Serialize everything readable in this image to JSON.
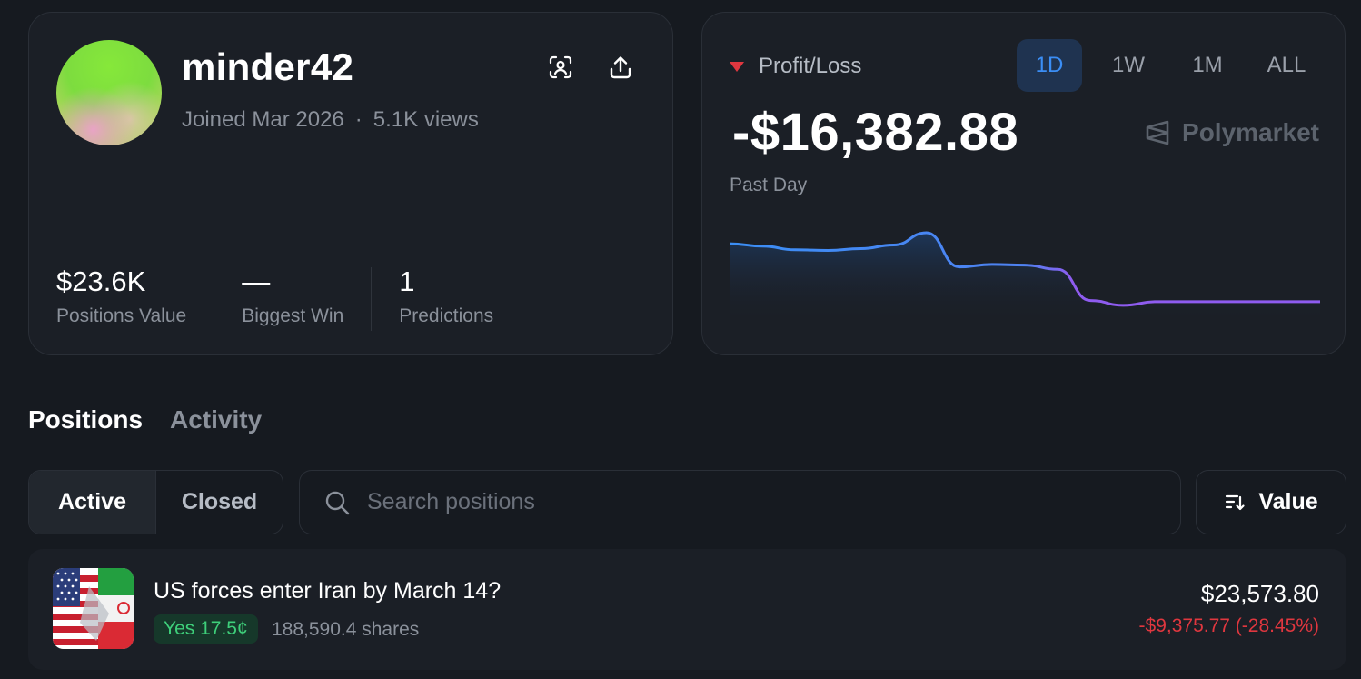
{
  "profile": {
    "username": "minder42",
    "joined": "Joined Mar 2026",
    "separator": "·",
    "views": "5.1K views",
    "icons": {
      "scan": "scan-profile-icon",
      "share": "share-icon"
    },
    "stats": [
      {
        "value": "$23.6K",
        "label": "Positions Value"
      },
      {
        "value": "—",
        "label": "Biggest Win"
      },
      {
        "value": "1",
        "label": "Predictions"
      }
    ]
  },
  "pnl": {
    "label": "Profit/Loss",
    "indicator_color": "#e0373f",
    "value": "-$16,382.88",
    "period": "Past Day",
    "brand": "Polymarket",
    "ranges": [
      "1D",
      "1W",
      "1M",
      "ALL"
    ],
    "active_range": "1D",
    "chart_data": {
      "type": "line",
      "series_values": [
        -10200,
        -10400,
        -10700,
        -10750,
        -10600,
        -10300,
        -9300,
        -12100,
        -11900,
        -11950,
        -12300,
        -14850,
        -15250,
        -14950,
        -14950,
        -14950,
        -14950,
        -14950,
        -14950
      ],
      "y_range": [
        -16000,
        -9000
      ],
      "line_colors": [
        "#3b8ef5",
        "#8f5cf0"
      ]
    }
  },
  "tabs": [
    {
      "label": "Positions",
      "active": true
    },
    {
      "label": "Activity",
      "active": false
    }
  ],
  "filters": {
    "status": [
      "Active",
      "Closed"
    ],
    "active_status": "Active",
    "search_placeholder": "Search positions",
    "search_value": "",
    "sort_label": "Value"
  },
  "positions": [
    {
      "title": "US forces enter Iran by March 14?",
      "outcome": "Yes 17.5¢",
      "shares": "188,590.4 shares",
      "value": "$23,573.80",
      "change": "-$9,375.77 (-28.45%)",
      "outcome_color": "#3ecf7a",
      "change_color": "#e0373f"
    }
  ]
}
